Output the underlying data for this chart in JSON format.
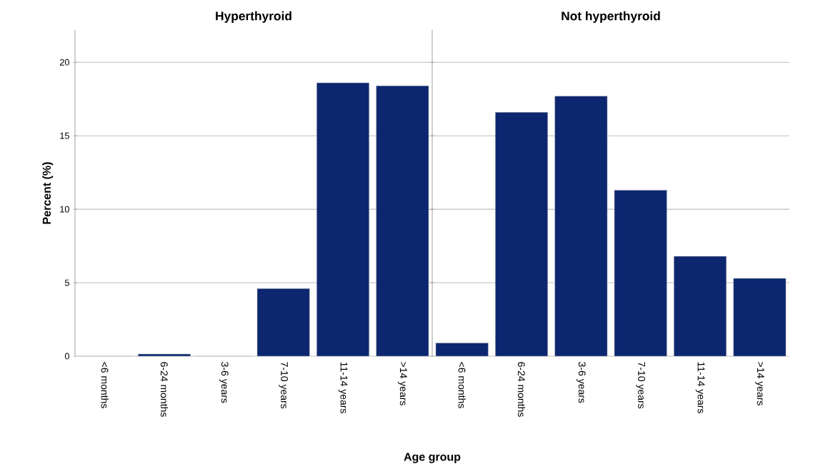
{
  "chart_data": [
    {
      "type": "bar",
      "title": "Hyperthyroid",
      "xlabel": "Age group",
      "ylabel": "Percent (%)",
      "categories": [
        "<6 months",
        "6-24 months",
        "3-6 years",
        "7-10 years",
        "11-14 years",
        ">14 years"
      ],
      "values": [
        0,
        0.15,
        0,
        4.6,
        18.6,
        18.4
      ],
      "color": "#0c2670",
      "ylim": [
        0,
        22.2
      ],
      "yticks": [
        0,
        5,
        10,
        15,
        20
      ],
      "grid": "y"
    },
    {
      "type": "bar",
      "title": "Not hyperthyroid",
      "categories": [
        "<6 months",
        "6-24 months",
        "3-6 years",
        "7-10 years",
        "11-14 years",
        ">14 years"
      ],
      "values": [
        0.9,
        16.6,
        17.7,
        11.3,
        6.8,
        5.3
      ],
      "color": "#0c2670",
      "ylim": [
        0,
        22.2
      ],
      "yticks": [
        0,
        5,
        10,
        15,
        20
      ],
      "grid": "y",
      "tick_labels": "x"
    }
  ]
}
